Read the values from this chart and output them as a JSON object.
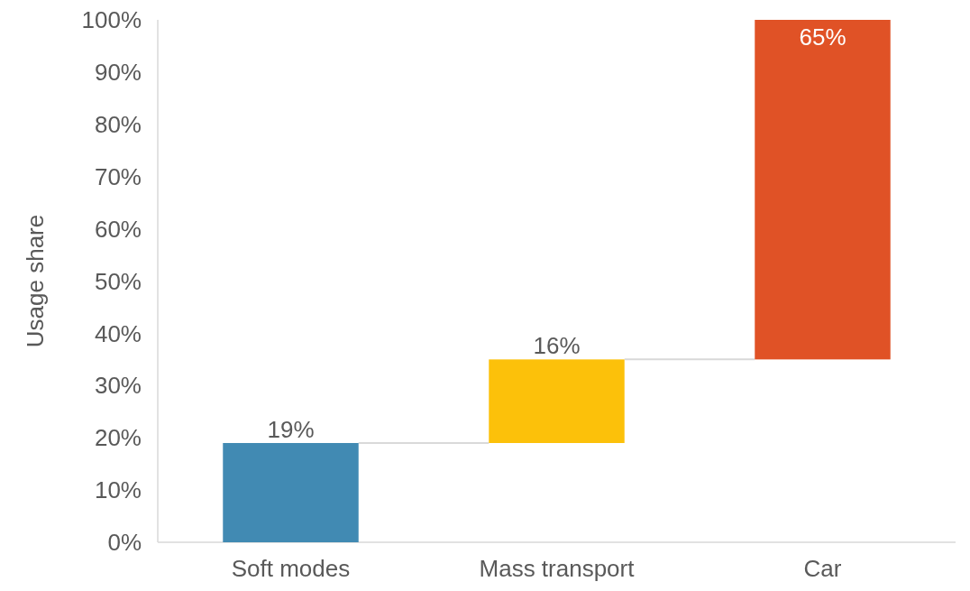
{
  "chart_data": {
    "type": "bar",
    "ylabel": "Usage share",
    "categories": [
      "Soft modes",
      "Mass transport",
      "Car"
    ],
    "values": [
      19,
      16,
      65
    ],
    "base": [
      0,
      19,
      35
    ],
    "colors": [
      "#418ab3",
      "#fcc10a",
      "#e05226"
    ],
    "value_labels": [
      "19%",
      "16%",
      "65%"
    ],
    "ylim": [
      0,
      100
    ],
    "yticks": [
      {
        "value": 0,
        "label": "0%"
      },
      {
        "value": 10,
        "label": "10%"
      },
      {
        "value": 20,
        "label": "20%"
      },
      {
        "value": 30,
        "label": "30%"
      },
      {
        "value": 40,
        "label": "40%"
      },
      {
        "value": 50,
        "label": "50%"
      },
      {
        "value": 60,
        "label": "60%"
      },
      {
        "value": 70,
        "label": "70%"
      },
      {
        "value": 80,
        "label": "80%"
      },
      {
        "value": 90,
        "label": "90%"
      },
      {
        "value": 100,
        "label": "100%"
      }
    ],
    "grid": false
  }
}
